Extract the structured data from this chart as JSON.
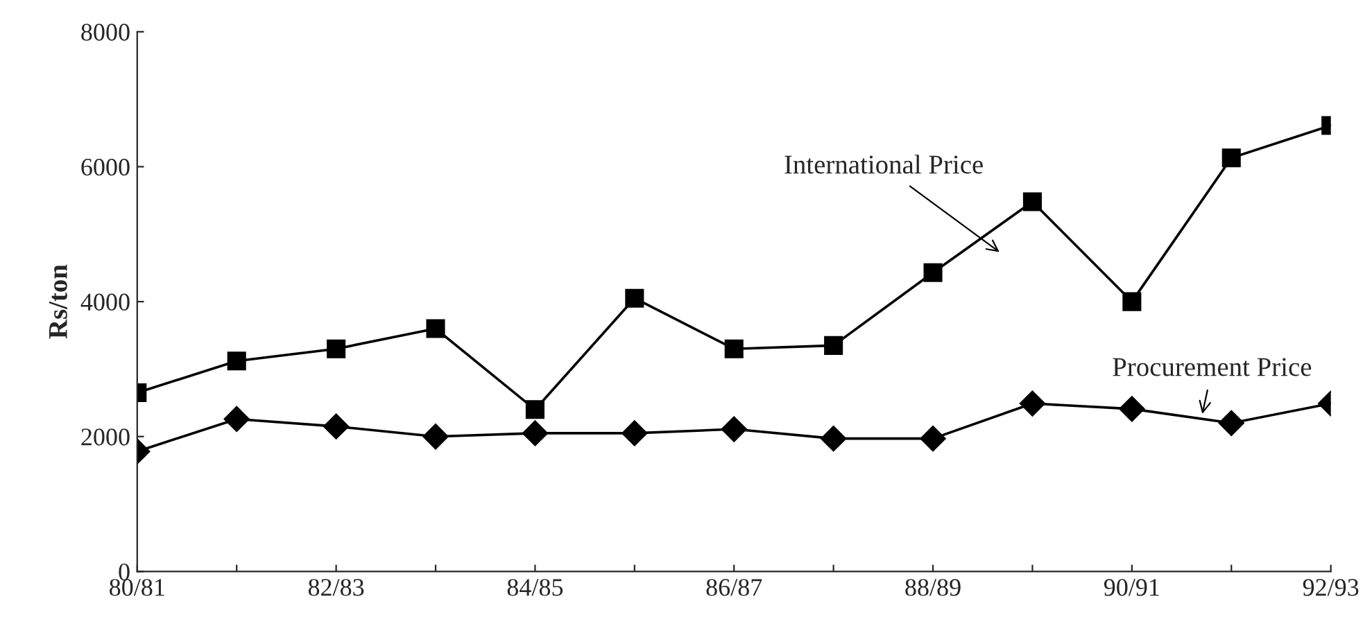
{
  "chart_data": {
    "type": "line",
    "ylabel": "Rs/ton",
    "categories": [
      "80/81",
      null,
      "82/83",
      null,
      "84/85",
      null,
      "86/87",
      null,
      "88/89",
      null,
      "90/91",
      null,
      "92/93"
    ],
    "series": [
      {
        "color": "#000000",
        "marker": "square",
        "values": [
          2650,
          3120,
          3300,
          3600,
          2400,
          4050,
          3300,
          3350,
          4430,
          5480,
          4000,
          6130,
          6610
        ]
      },
      {
        "color": "#000000",
        "marker": "diamond",
        "values": [
          1780,
          2260,
          2150,
          2000,
          2050,
          2050,
          2110,
          1970,
          1970,
          2490,
          2410,
          2200,
          2490
        ]
      }
    ],
    "annotations": [
      "International Price",
      "Procurement Price"
    ],
    "ylim": [
      0,
      8000
    ],
    "yticks": [
      0,
      2000,
      4000,
      6000,
      8000
    ],
    "grid": false,
    "legend": false,
    "line_style": "solid"
  }
}
